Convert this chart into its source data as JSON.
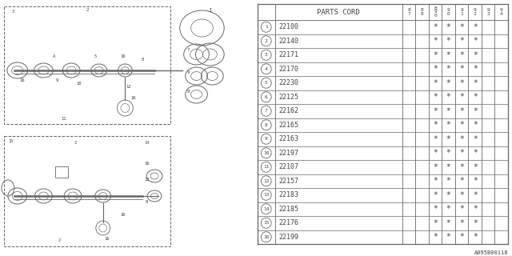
{
  "bg_color": "#ffffff",
  "table_header": "PARTS CORD",
  "col_headers": [
    "8\n7",
    "8\n8",
    "8\n9\n0",
    "9\n0",
    "9\n1",
    "9\n2",
    "9\n3",
    "9\n4"
  ],
  "parts": [
    {
      "num": 1,
      "code": "22100",
      "marks": [
        0,
        0,
        1,
        1,
        1,
        1,
        0,
        0
      ]
    },
    {
      "num": 2,
      "code": "22140",
      "marks": [
        0,
        0,
        1,
        1,
        1,
        1,
        0,
        0
      ]
    },
    {
      "num": 3,
      "code": "22171",
      "marks": [
        0,
        0,
        1,
        1,
        1,
        1,
        0,
        0
      ]
    },
    {
      "num": 4,
      "code": "22170",
      "marks": [
        0,
        0,
        1,
        1,
        1,
        1,
        0,
        0
      ]
    },
    {
      "num": 5,
      "code": "22230",
      "marks": [
        0,
        0,
        1,
        1,
        1,
        1,
        0,
        0
      ]
    },
    {
      "num": 6,
      "code": "22125",
      "marks": [
        0,
        0,
        1,
        1,
        1,
        1,
        0,
        0
      ]
    },
    {
      "num": 7,
      "code": "22162",
      "marks": [
        0,
        0,
        1,
        1,
        1,
        1,
        0,
        0
      ]
    },
    {
      "num": 8,
      "code": "22165",
      "marks": [
        0,
        0,
        1,
        1,
        1,
        1,
        0,
        0
      ]
    },
    {
      "num": 9,
      "code": "22163",
      "marks": [
        0,
        0,
        1,
        1,
        1,
        1,
        0,
        0
      ]
    },
    {
      "num": 10,
      "code": "22197",
      "marks": [
        0,
        0,
        1,
        1,
        1,
        1,
        0,
        0
      ]
    },
    {
      "num": 11,
      "code": "22107",
      "marks": [
        0,
        0,
        1,
        1,
        1,
        1,
        0,
        0
      ]
    },
    {
      "num": 12,
      "code": "22157",
      "marks": [
        0,
        0,
        1,
        1,
        1,
        1,
        0,
        0
      ]
    },
    {
      "num": 13,
      "code": "22183",
      "marks": [
        0,
        0,
        1,
        1,
        1,
        1,
        0,
        0
      ]
    },
    {
      "num": 14,
      "code": "22185",
      "marks": [
        0,
        0,
        1,
        1,
        1,
        1,
        0,
        0
      ]
    },
    {
      "num": 15,
      "code": "22176",
      "marks": [
        0,
        0,
        1,
        1,
        1,
        1,
        0,
        0
      ]
    },
    {
      "num": 16,
      "code": "22199",
      "marks": [
        0,
        0,
        1,
        1,
        1,
        1,
        0,
        0
      ]
    }
  ],
  "footer": "A095B00118",
  "line_color": "#666666",
  "text_color": "#444444"
}
